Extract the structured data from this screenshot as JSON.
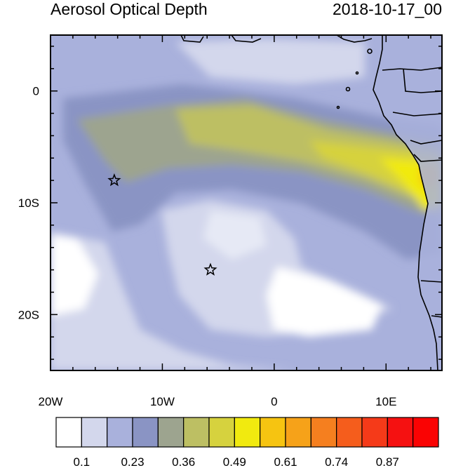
{
  "map": {
    "title": "Aerosol Optical Depth",
    "timestamp": "2018-10-17_00",
    "lon_range": [
      -20,
      15
    ],
    "lat_range": [
      -25,
      5
    ],
    "x_ticks": [
      {
        "value": -20,
        "label": "20W"
      },
      {
        "value": -10,
        "label": "10W"
      },
      {
        "value": 0,
        "label": "0"
      },
      {
        "value": 10,
        "label": "10E"
      }
    ],
    "y_ticks": [
      {
        "value": 0,
        "label": "0"
      },
      {
        "value": -10,
        "label": "10S"
      },
      {
        "value": -20,
        "label": "20S"
      }
    ],
    "markers": [
      {
        "name": "star-marker-1",
        "lon": -14.3,
        "lat": -8.0
      },
      {
        "name": "star-marker-2",
        "lon": -5.7,
        "lat": -16.0
      }
    ]
  },
  "colorbar": {
    "colors": [
      "#ffffff",
      "#d3d7ec",
      "#a9b1dc",
      "#8a94c4",
      "#9da48f",
      "#bdbf63",
      "#d6d23e",
      "#f1ea0f",
      "#f6c411",
      "#f6a219",
      "#f57f1f",
      "#f55d1c",
      "#f53a19",
      "#f51111",
      "#fa0303"
    ],
    "labels": [
      "0.1",
      "0.23",
      "0.36",
      "0.49",
      "0.61",
      "0.74",
      "0.87"
    ]
  }
}
